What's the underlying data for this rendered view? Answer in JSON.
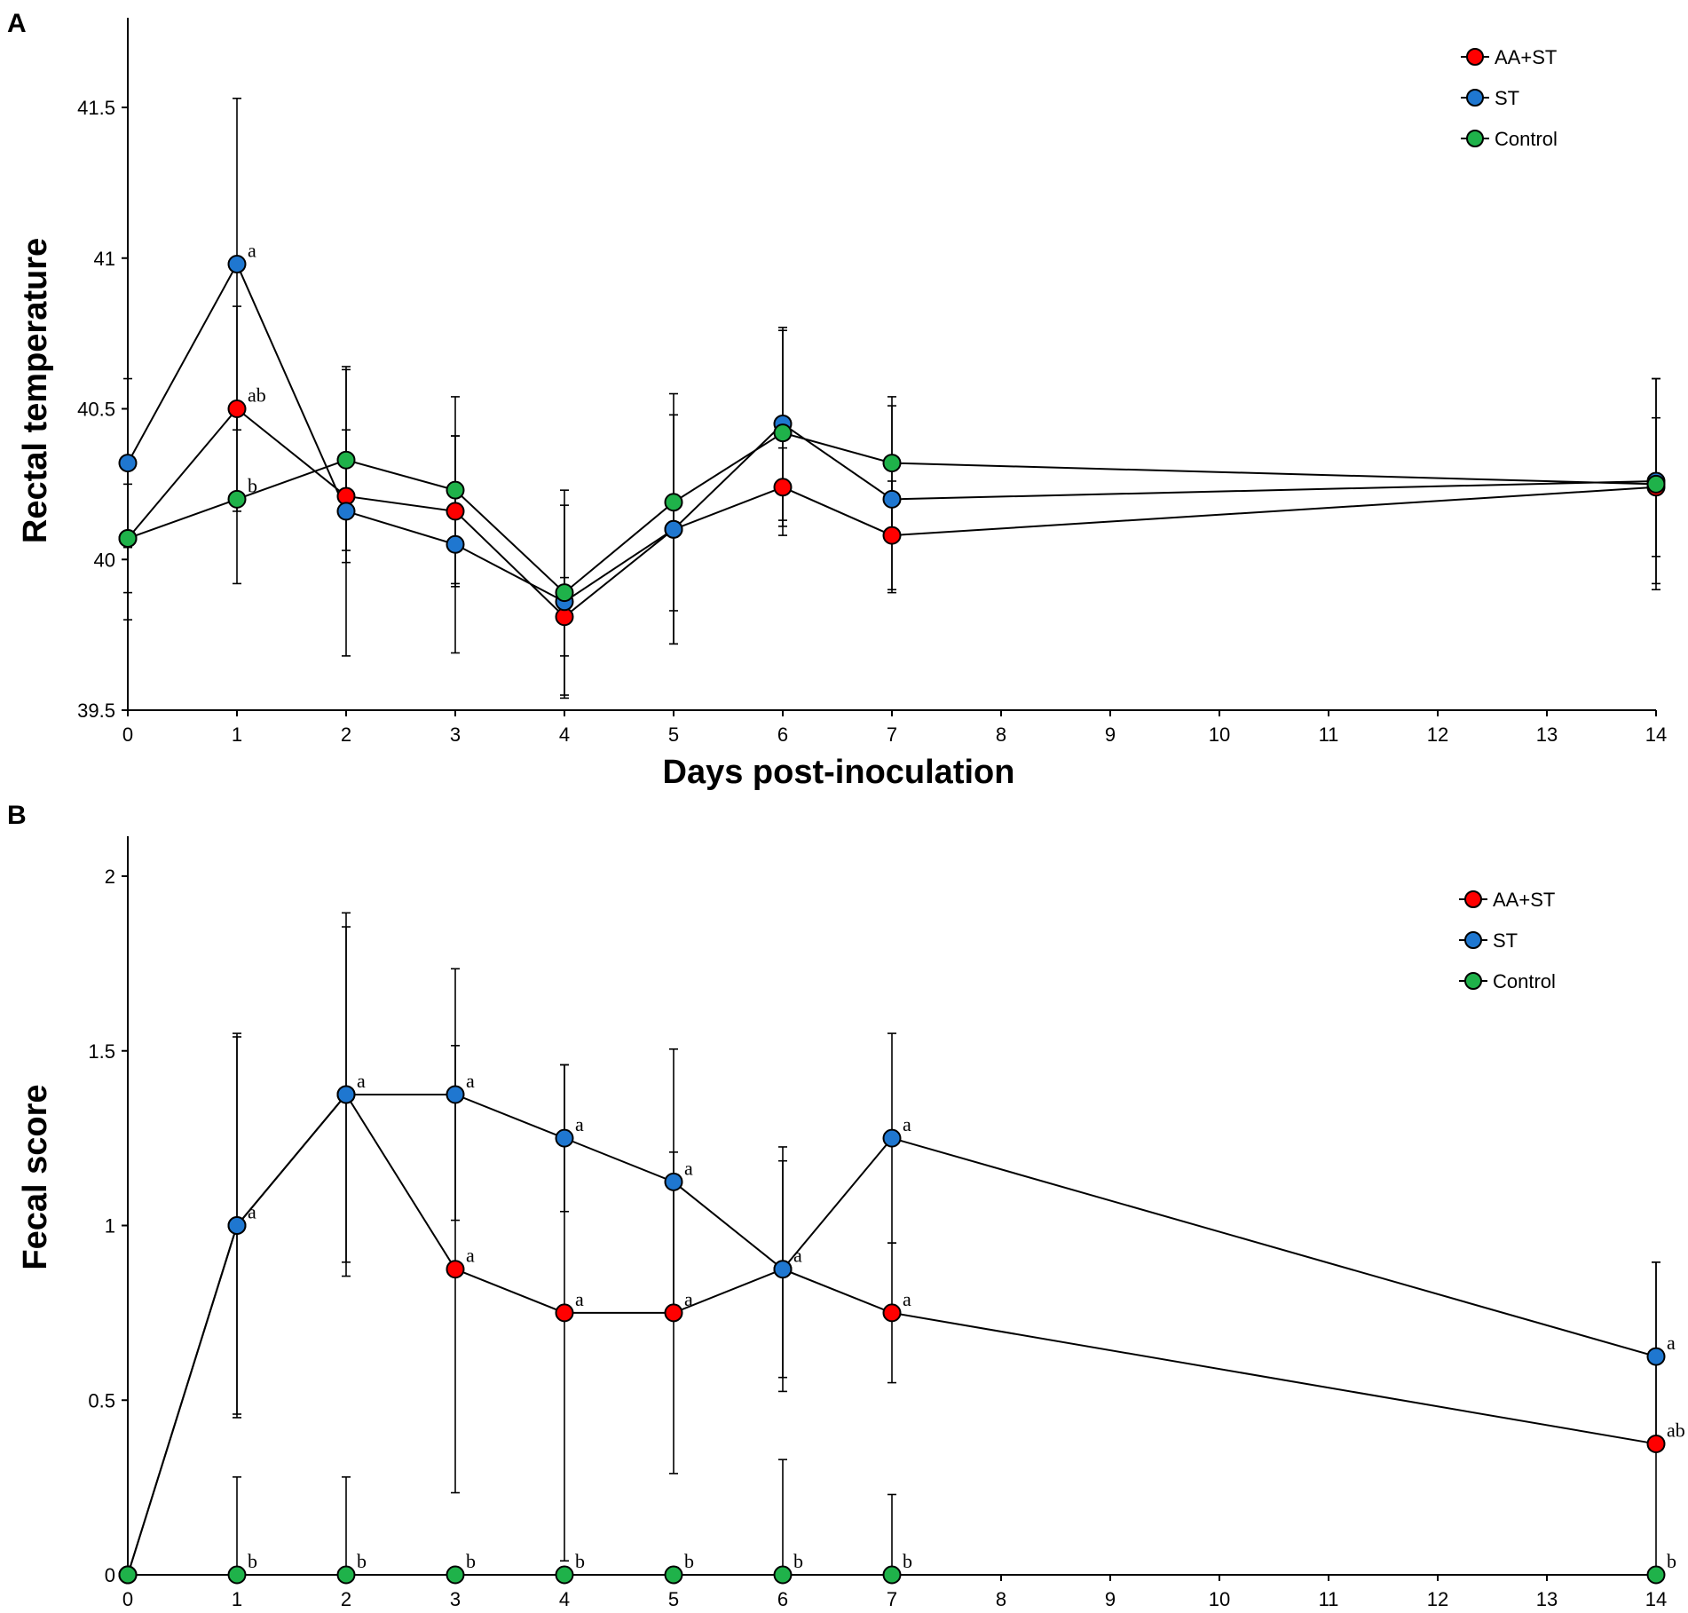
{
  "colors": {
    "aa_st": "#ff0000",
    "st": "#1f77d0",
    "control": "#1fb24a"
  },
  "chart_data": [
    {
      "panel": "A",
      "type": "line",
      "xlabel": "Days post-inoculation",
      "ylabel": "Rectal temperature",
      "categories": [
        0,
        1,
        2,
        3,
        4,
        5,
        6,
        7,
        8,
        9,
        10,
        11,
        12,
        13,
        14
      ],
      "xtick_labels": [
        "0",
        "1",
        "2",
        "3",
        "4",
        "5",
        "6",
        "7",
        "8",
        "9",
        "10",
        "11",
        "12",
        "13",
        "14"
      ],
      "ylim": [
        39.5,
        41.8
      ],
      "yticks": [
        39.5,
        40,
        40.5,
        41,
        41.5
      ],
      "ytick_labels": [
        "39.5",
        "40",
        "40.5",
        "41",
        "41.5"
      ],
      "legend": [
        "AA+ST",
        "ST",
        "Control"
      ],
      "series": [
        {
          "name": "AA+ST",
          "color_key": "aa_st",
          "x": [
            0,
            1,
            2,
            3,
            4,
            5,
            6,
            7,
            14
          ],
          "values": [
            40.07,
            40.5,
            40.21,
            40.16,
            39.81,
            40.1,
            40.24,
            40.08,
            40.24
          ],
          "errors": [
            0.27,
            0.34,
            0.22,
            0.25,
            0.13,
            0.38,
            0.13,
            0.18,
            0.23
          ],
          "labels": [
            "",
            "ab",
            "",
            "",
            "",
            "",
            "",
            "",
            ""
          ]
        },
        {
          "name": "ST",
          "color_key": "st",
          "x": [
            0,
            1,
            2,
            3,
            4,
            5,
            6,
            7,
            14
          ],
          "values": [
            40.32,
            40.98,
            40.16,
            40.05,
            39.86,
            40.1,
            40.45,
            40.2,
            40.26
          ],
          "errors": [
            0.28,
            0.55,
            0.48,
            0.36,
            0.32,
            0.38,
            0.32,
            0.31,
            0.34
          ],
          "labels": [
            "",
            "a",
            "",
            "",
            "",
            "",
            "",
            "",
            ""
          ]
        },
        {
          "name": "Control",
          "color_key": "control",
          "x": [
            0,
            1,
            2,
            3,
            4,
            5,
            6,
            7,
            14
          ],
          "values": [
            40.07,
            40.2,
            40.33,
            40.23,
            39.89,
            40.19,
            40.42,
            40.32,
            40.25
          ],
          "errors": [
            0.18,
            0.28,
            0.3,
            0.31,
            0.34,
            0.36,
            0.34,
            0.22,
            0.35
          ],
          "labels": [
            "",
            "b",
            "",
            "",
            "",
            "",
            "",
            "",
            ""
          ]
        }
      ]
    },
    {
      "panel": "B",
      "type": "line",
      "xlabel": "Days post-inoculation",
      "ylabel": "Fecal score",
      "categories": [
        0,
        1,
        2,
        3,
        4,
        5,
        6,
        7,
        8,
        9,
        10,
        11,
        12,
        13,
        14
      ],
      "xtick_labels": [
        "0",
        "1",
        "2",
        "3",
        "4",
        "5",
        "6",
        "7",
        "8",
        "9",
        "10",
        "11",
        "12",
        "13",
        "14"
      ],
      "ylim": [
        0,
        2
      ],
      "yticks": [
        0,
        0.5,
        1,
        1.5,
        2
      ],
      "ytick_labels": [
        "0",
        "0.5",
        "1",
        "1.5",
        "2"
      ],
      "legend": [
        "AA+ST",
        "ST",
        "Control"
      ],
      "series": [
        {
          "name": "AA+ST",
          "color_key": "aa_st",
          "x": [
            0,
            1,
            2,
            3,
            4,
            5,
            6,
            7,
            14
          ],
          "values": [
            0,
            1.0,
            1.375,
            0.875,
            0.75,
            0.75,
            0.875,
            0.75,
            0.375
          ],
          "errors": [
            0,
            0.55,
            0.52,
            0.64,
            0.71,
            0.46,
            0.35,
            0.2,
            0.52
          ],
          "labels": [
            "",
            "",
            "",
            "a",
            "a",
            "a",
            "",
            "a",
            "ab"
          ]
        },
        {
          "name": "ST",
          "color_key": "st",
          "x": [
            0,
            1,
            2,
            3,
            4,
            5,
            6,
            7,
            14
          ],
          "values": [
            0,
            1.0,
            1.375,
            1.375,
            1.25,
            1.125,
            0.875,
            1.25,
            0.625
          ],
          "errors": [
            0,
            0.54,
            0.48,
            0.36,
            0.21,
            0.38,
            0.31,
            0.3,
            0.27
          ],
          "labels": [
            "",
            "a",
            "a",
            "a",
            "a",
            "a",
            "a",
            "a",
            "a"
          ]
        },
        {
          "name": "Control",
          "color_key": "control",
          "x": [
            0,
            1,
            2,
            3,
            4,
            5,
            6,
            7,
            14
          ],
          "values": [
            0,
            0,
            0,
            0,
            0,
            0,
            0,
            0,
            0
          ],
          "errors": [
            0,
            0.28,
            0.28,
            0,
            0,
            0,
            0.33,
            0.23,
            0
          ],
          "labels": [
            "",
            "b",
            "b",
            "b",
            "b",
            "b",
            "b",
            "b",
            "b"
          ]
        }
      ]
    }
  ]
}
